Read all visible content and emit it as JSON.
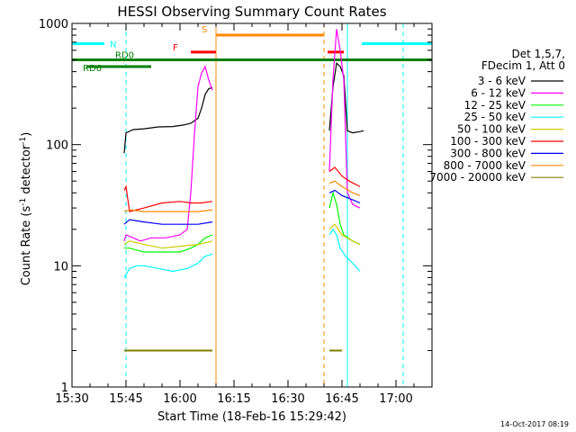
{
  "chart_data": {
    "type": "line",
    "title": "HESSI Observing Summary Count Rates",
    "xlabel": "Start Time (18-Feb-16 15:29:42)",
    "ylabel_main": "Count Rate (s",
    "ylabel_sup1": "-1",
    "ylabel_mid": " detector",
    "ylabel_sup2": "-1",
    "ylabel_end": ")",
    "x_unit": "minutes since 15:30",
    "xlim": [
      0,
      100
    ],
    "ylim": [
      1,
      1000
    ],
    "yscale": "log",
    "xticks": [
      {
        "v": 0,
        "label": "15:30"
      },
      {
        "v": 15,
        "label": "15:45"
      },
      {
        "v": 30,
        "label": "16:00"
      },
      {
        "v": 45,
        "label": "16:15"
      },
      {
        "v": 60,
        "label": "16:30"
      },
      {
        "v": 75,
        "label": "16:45"
      },
      {
        "v": 90,
        "label": "17:00"
      }
    ],
    "yticks": [
      {
        "v": 1,
        "label": "1"
      },
      {
        "v": 10,
        "label": "10"
      },
      {
        "v": 100,
        "label": "100"
      },
      {
        "v": 1000,
        "label": "1000"
      }
    ],
    "legend": {
      "header1": "Det 1,5,7,",
      "header2": "FDecim 1, Att 0",
      "position": "right"
    },
    "series": [
      {
        "name": "3 - 6 keV",
        "color": "#000000",
        "segments": [
          [
            [
              14.5,
              85
            ],
            [
              15,
              125
            ],
            [
              17,
              133
            ],
            [
              20,
              135
            ],
            [
              24,
              140
            ],
            [
              28,
              141
            ],
            [
              31,
              145
            ],
            [
              33,
              150
            ],
            [
              35,
              165
            ],
            [
              36,
              200
            ],
            [
              37,
              260
            ],
            [
              38,
              290
            ],
            [
              39,
              295
            ]
          ],
          [
            [
              71.5,
              130
            ],
            [
              72.5,
              300
            ],
            [
              73.5,
              470
            ],
            [
              74.5,
              440
            ],
            [
              75.5,
              370
            ],
            [
              76.5,
              130
            ],
            [
              78,
              125
            ],
            [
              80,
              128
            ],
            [
              81,
              130
            ]
          ]
        ]
      },
      {
        "name": "6 - 12 keV",
        "color": "#ff00ff",
        "segments": [
          [
            [
              14.5,
              16
            ],
            [
              15,
              18
            ],
            [
              17,
              17
            ],
            [
              19,
              16
            ],
            [
              22,
              17
            ],
            [
              26,
              17
            ],
            [
              30,
              18
            ],
            [
              32,
              20
            ],
            [
              33,
              40
            ],
            [
              34,
              120
            ],
            [
              35,
              300
            ],
            [
              36,
              390
            ],
            [
              37,
              440
            ],
            [
              38,
              340
            ],
            [
              39,
              280
            ]
          ],
          [
            [
              71.5,
              60
            ],
            [
              72.5,
              350
            ],
            [
              73.5,
              900
            ],
            [
              74.5,
              600
            ],
            [
              75.5,
              340
            ],
            [
              76.5,
              40
            ],
            [
              78,
              32
            ],
            [
              80,
              30
            ]
          ]
        ]
      },
      {
        "name": "12 - 25 keV",
        "color": "#00ff00",
        "segments": [
          [
            [
              14.5,
              14
            ],
            [
              16,
              14
            ],
            [
              20,
              13
            ],
            [
              25,
              13
            ],
            [
              30,
              13
            ],
            [
              33,
              14
            ],
            [
              35,
              15
            ],
            [
              37,
              17
            ],
            [
              39,
              18
            ]
          ],
          [
            [
              71.5,
              30
            ],
            [
              72.5,
              40
            ],
            [
              73.5,
              32
            ],
            [
              74.5,
              22
            ],
            [
              75.5,
              18
            ],
            [
              78,
              16
            ],
            [
              80,
              15
            ]
          ]
        ]
      },
      {
        "name": "25 - 50 keV",
        "color": "#00ffff",
        "segments": [
          [
            [
              14.5,
              8
            ],
            [
              16,
              9.5
            ],
            [
              18,
              10
            ],
            [
              20,
              10
            ],
            [
              24,
              9.5
            ],
            [
              28,
              9
            ],
            [
              32,
              9.5
            ],
            [
              35,
              10.5
            ],
            [
              37,
              12
            ],
            [
              39,
              12.5
            ]
          ],
          [
            [
              71.5,
              18
            ],
            [
              72.5,
              20
            ],
            [
              73.5,
              18
            ],
            [
              74.5,
              14
            ],
            [
              76,
              12
            ],
            [
              78,
              10.5
            ],
            [
              80,
              9
            ]
          ]
        ]
      },
      {
        "name": "50 - 100 keV",
        "color": "#cccc00",
        "segments": [
          [
            [
              14.5,
              15
            ],
            [
              16,
              16
            ],
            [
              20,
              15
            ],
            [
              25,
              14
            ],
            [
              30,
              14.5
            ],
            [
              35,
              15
            ],
            [
              39,
              16
            ]
          ],
          [
            [
              71.5,
              20
            ],
            [
              73,
              22
            ],
            [
              75,
              18
            ],
            [
              78,
              16
            ],
            [
              80,
              15
            ]
          ]
        ]
      },
      {
        "name": "100 - 300 keV",
        "color": "#ff0000",
        "segments": [
          [
            [
              14.5,
              42
            ],
            [
              15,
              45
            ],
            [
              16,
              28
            ],
            [
              20,
              30
            ],
            [
              25,
              33
            ],
            [
              30,
              34
            ],
            [
              33,
              33
            ],
            [
              36,
              33
            ],
            [
              39,
              34
            ]
          ],
          [
            [
              71.5,
              60
            ],
            [
              73,
              65
            ],
            [
              75,
              55
            ],
            [
              77,
              50
            ],
            [
              80,
              45
            ]
          ]
        ]
      },
      {
        "name": "300 - 800 keV",
        "color": "#0000ff",
        "segments": [
          [
            [
              14.5,
              22
            ],
            [
              16,
              24
            ],
            [
              20,
              23
            ],
            [
              25,
              22
            ],
            [
              30,
              22
            ],
            [
              35,
              22
            ],
            [
              39,
              23
            ]
          ],
          [
            [
              71.5,
              40
            ],
            [
              73,
              42
            ],
            [
              75,
              38
            ],
            [
              78,
              35
            ],
            [
              80,
              33
            ]
          ]
        ]
      },
      {
        "name": "800 - 7000 keV",
        "color": "#ff8800",
        "segments": [
          [
            [
              14.5,
              28
            ],
            [
              16,
              29
            ],
            [
              20,
              28
            ],
            [
              25,
              28
            ],
            [
              30,
              28
            ],
            [
              35,
              28
            ],
            [
              39,
              29
            ]
          ],
          [
            [
              71.5,
              48
            ],
            [
              73,
              50
            ],
            [
              75,
              45
            ],
            [
              78,
              40
            ],
            [
              80,
              38
            ]
          ]
        ]
      },
      {
        "name": "7000 - 20000 keV",
        "color": "#808000",
        "segments": [
          [
            [
              14.5,
              2
            ],
            [
              15,
              2
            ],
            [
              20,
              2
            ],
            [
              25,
              2
            ],
            [
              30,
              2
            ],
            [
              35,
              2
            ],
            [
              39,
              2
            ]
          ],
          [
            [
              71.5,
              2
            ],
            [
              73,
              2
            ],
            [
              75,
              2
            ]
          ]
        ]
      }
    ],
    "flags": [
      {
        "label": "N",
        "color": "#00ffff",
        "y": 680,
        "segments": [
          [
            0,
            9
          ],
          [
            80.5,
            100
          ]
        ]
      },
      {
        "label": "S",
        "color": "#ff8800",
        "y": 800,
        "segments": [
          [
            40,
            70
          ]
        ]
      },
      {
        "label": "F",
        "color": "#ff0000",
        "y": 580,
        "segments": [
          [
            33,
            40
          ],
          [
            71,
            75.5
          ]
        ]
      },
      {
        "label": "RD0",
        "color": "#008000",
        "y": 500,
        "segments": [
          [
            0,
            100
          ]
        ]
      },
      {
        "label": "RD6",
        "color": "#008000",
        "y": 440,
        "segments": [
          [
            4,
            22
          ]
        ]
      }
    ],
    "vlines": [
      {
        "x": 15,
        "color": "#00ffff",
        "style": "dash"
      },
      {
        "x": 40,
        "color": "#ff8800",
        "style": "solid"
      },
      {
        "x": 70,
        "color": "#ff8800",
        "style": "dash"
      },
      {
        "x": 76.5,
        "color": "#00ffff",
        "style": "solid"
      },
      {
        "x": 92,
        "color": "#00ffff",
        "style": "dash"
      }
    ]
  },
  "footer": {
    "timestamp": "14-Oct-2017 08:19"
  }
}
